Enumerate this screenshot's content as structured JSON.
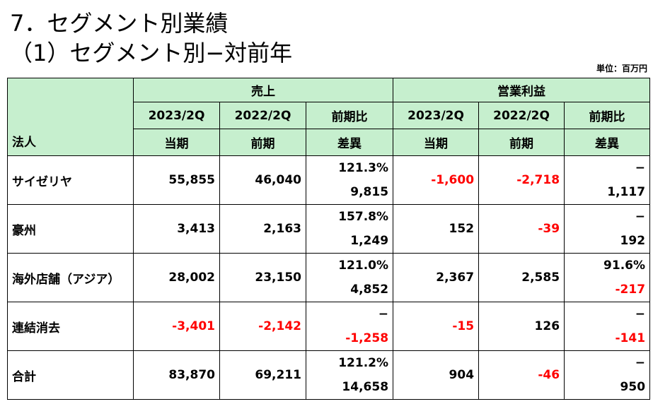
{
  "title_line1": "7．セグメント別業績",
  "title_line2": "（1）セグメント別−対前年",
  "unit": "単位：百万円",
  "header": {
    "corp": "法人",
    "sales": "売上",
    "op_profit": "営業利益",
    "periods": [
      "2023/2Q",
      "2022/2Q",
      "前期比"
    ],
    "subs": [
      "当期",
      "前期",
      "差異"
    ]
  },
  "rows": [
    {
      "name": "サイゼリヤ",
      "sales_cur": "55,855",
      "sales_prev": "46,040",
      "sales_ratio": "121.3%",
      "sales_diff": "9,815",
      "op_cur": "-1,600",
      "op_prev": "-2,718",
      "op_ratio": "−",
      "op_diff": "1,117"
    },
    {
      "name": "豪州",
      "sales_cur": "3,413",
      "sales_prev": "2,163",
      "sales_ratio": "157.8%",
      "sales_diff": "1,249",
      "op_cur": "152",
      "op_prev": "-39",
      "op_ratio": "−",
      "op_diff": "192"
    },
    {
      "name": "海外店舗（アジア）",
      "sales_cur": "28,002",
      "sales_prev": "23,150",
      "sales_ratio": "121.0%",
      "sales_diff": "4,852",
      "op_cur": "2,367",
      "op_prev": "2,585",
      "op_ratio": "91.6%",
      "op_diff": "-217"
    },
    {
      "name": "連結消去",
      "sales_cur": "-3,401",
      "sales_prev": "-2,142",
      "sales_ratio": "−",
      "sales_diff": "-1,258",
      "op_cur": "-15",
      "op_prev": "126",
      "op_ratio": "−",
      "op_diff": "-141"
    },
    {
      "name": "合計",
      "sales_cur": "83,870",
      "sales_prev": "69,211",
      "sales_ratio": "121.2%",
      "sales_diff": "14,658",
      "op_cur": "904",
      "op_prev": "-46",
      "op_ratio": "−",
      "op_diff": "950"
    }
  ],
  "colors": {
    "header_bg": "#c6efce",
    "negative": "#ff0000"
  }
}
